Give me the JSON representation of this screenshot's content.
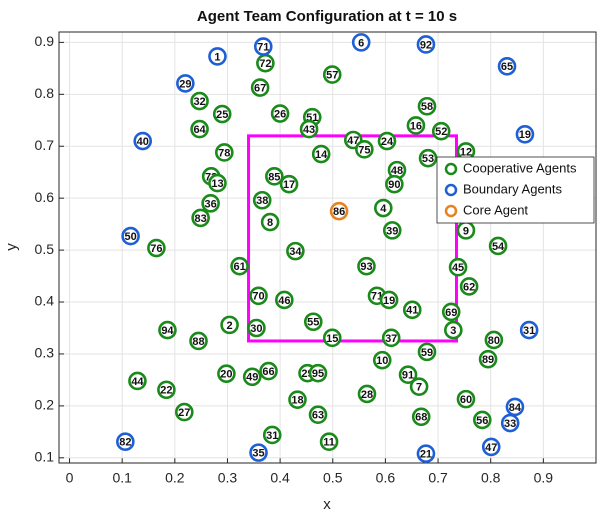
{
  "chart_data": {
    "type": "scatter",
    "title": "Agent Team Configuration at t = 10 s",
    "xlabel": "x",
    "ylabel": "y",
    "xlim": [
      -0.02,
      1.0
    ],
    "ylim": [
      0.09,
      0.92
    ],
    "xticks": [
      0,
      0.1,
      0.2,
      0.3,
      0.4,
      0.5,
      0.6,
      0.7,
      0.8,
      0.9
    ],
    "yticks": [
      0.1,
      0.2,
      0.3,
      0.4,
      0.5,
      0.6,
      0.7,
      0.8,
      0.9
    ],
    "grid": true,
    "legend": "east",
    "region": {
      "x": [
        0.34,
        0.735
      ],
      "y": [
        0.325,
        0.72
      ],
      "color": "#ff00ff"
    },
    "series": [
      {
        "name": "Cooperative Agents",
        "color": "#1a8a1a",
        "labels": [
          72,
          57,
          67,
          32,
          58,
          25,
          26,
          51,
          43,
          16,
          52,
          64,
          47,
          75,
          24,
          12,
          78,
          14,
          53,
          73,
          13,
          85,
          17,
          48,
          90,
          36,
          38,
          4,
          83,
          8,
          39,
          9,
          76,
          54,
          34,
          61,
          93,
          45,
          62,
          70,
          46,
          71,
          19,
          41,
          69,
          94,
          2,
          30,
          55,
          3,
          15,
          37,
          88,
          80,
          59,
          10,
          89,
          20,
          49,
          66,
          29,
          95,
          91,
          44,
          22,
          7,
          28,
          18,
          60,
          27,
          63,
          68,
          56,
          31,
          11
        ],
        "x": [
          0.372,
          0.499,
          0.362,
          0.247,
          0.679,
          0.29,
          0.4,
          0.461,
          0.455,
          0.658,
          0.706,
          0.247,
          0.539,
          0.56,
          0.603,
          0.753,
          0.294,
          0.478,
          0.681,
          0.269,
          0.281,
          0.389,
          0.417,
          0.622,
          0.617,
          0.268,
          0.366,
          0.596,
          0.249,
          0.381,
          0.613,
          0.753,
          0.165,
          0.814,
          0.429,
          0.323,
          0.564,
          0.738,
          0.759,
          0.359,
          0.408,
          0.584,
          0.607,
          0.651,
          0.725,
          0.186,
          0.304,
          0.355,
          0.463,
          0.729,
          0.499,
          0.611,
          0.245,
          0.806,
          0.679,
          0.594,
          0.795,
          0.298,
          0.347,
          0.378,
          0.452,
          0.472,
          0.643,
          0.129,
          0.184,
          0.664,
          0.565,
          0.433,
          0.753,
          0.218,
          0.472,
          0.668,
          0.784,
          0.385,
          0.493
        ],
        "y": [
          0.86,
          0.838,
          0.813,
          0.787,
          0.777,
          0.762,
          0.763,
          0.756,
          0.733,
          0.74,
          0.729,
          0.733,
          0.712,
          0.694,
          0.71,
          0.69,
          0.688,
          0.685,
          0.677,
          0.642,
          0.629,
          0.642,
          0.627,
          0.654,
          0.627,
          0.59,
          0.596,
          0.581,
          0.562,
          0.554,
          0.538,
          0.538,
          0.504,
          0.508,
          0.498,
          0.469,
          0.469,
          0.467,
          0.43,
          0.412,
          0.404,
          0.412,
          0.404,
          0.385,
          0.381,
          0.346,
          0.356,
          0.35,
          0.362,
          0.346,
          0.331,
          0.331,
          0.325,
          0.327,
          0.304,
          0.288,
          0.29,
          0.262,
          0.256,
          0.267,
          0.263,
          0.263,
          0.26,
          0.248,
          0.231,
          0.237,
          0.223,
          0.212,
          0.213,
          0.188,
          0.183,
          0.179,
          0.173,
          0.144,
          0.131
        ]
      },
      {
        "name": "Boundary Agents",
        "color": "#1f5fd6",
        "labels": [
          1,
          71,
          6,
          92,
          65,
          29,
          19,
          40,
          50,
          31,
          84,
          33,
          82,
          35,
          21,
          47
        ],
        "x": [
          0.281,
          0.368,
          0.554,
          0.677,
          0.831,
          0.22,
          0.865,
          0.139,
          0.116,
          0.873,
          0.846,
          0.837,
          0.106,
          0.359,
          0.677,
          0.801
        ],
        "y": [
          0.873,
          0.892,
          0.9,
          0.896,
          0.854,
          0.821,
          0.723,
          0.71,
          0.527,
          0.346,
          0.198,
          0.167,
          0.131,
          0.11,
          0.108,
          0.121
        ]
      },
      {
        "name": "Core Agent",
        "color": "#e8821e",
        "labels": [
          86
        ],
        "x": [
          0.512
        ],
        "y": [
          0.575
        ]
      }
    ]
  }
}
